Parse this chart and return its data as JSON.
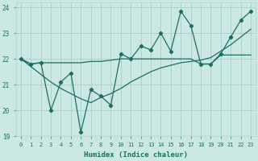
{
  "xlabel": "Humidex (Indice chaleur)",
  "bg_color": "#cce8e4",
  "grid_color": "#aad4d0",
  "line_color": "#1a7060",
  "x_values": [
    0,
    1,
    2,
    3,
    4,
    5,
    6,
    7,
    8,
    9,
    10,
    11,
    12,
    13,
    14,
    15,
    16,
    17,
    18,
    19,
    20,
    21,
    22,
    23
  ],
  "line1": [
    22.0,
    21.8,
    21.85,
    20.0,
    21.1,
    21.45,
    19.15,
    20.8,
    20.55,
    20.2,
    22.2,
    22.0,
    22.5,
    22.35,
    23.0,
    22.3,
    23.85,
    23.3,
    21.8,
    21.8,
    22.2,
    22.85,
    23.5,
    23.85
  ],
  "line2": [
    22.0,
    21.8,
    21.85,
    21.85,
    21.85,
    21.85,
    21.85,
    21.9,
    21.9,
    21.95,
    22.0,
    22.0,
    22.0,
    22.0,
    22.0,
    22.0,
    22.0,
    22.0,
    21.8,
    21.8,
    22.15,
    22.15,
    22.15,
    22.15
  ],
  "line3": [
    22.0,
    21.7,
    21.4,
    21.1,
    20.85,
    20.65,
    20.45,
    20.3,
    20.5,
    20.65,
    20.85,
    21.1,
    21.3,
    21.5,
    21.65,
    21.75,
    21.85,
    21.9,
    21.95,
    22.05,
    22.3,
    22.55,
    22.85,
    23.15
  ],
  "xlim": [
    -0.5,
    23.5
  ],
  "ylim": [
    19.0,
    24.2
  ],
  "yticks": [
    19,
    20,
    21,
    22,
    23,
    24
  ],
  "xticks": [
    0,
    1,
    2,
    3,
    4,
    5,
    6,
    7,
    8,
    9,
    10,
    11,
    12,
    13,
    14,
    15,
    16,
    17,
    18,
    19,
    20,
    21,
    22,
    23
  ]
}
